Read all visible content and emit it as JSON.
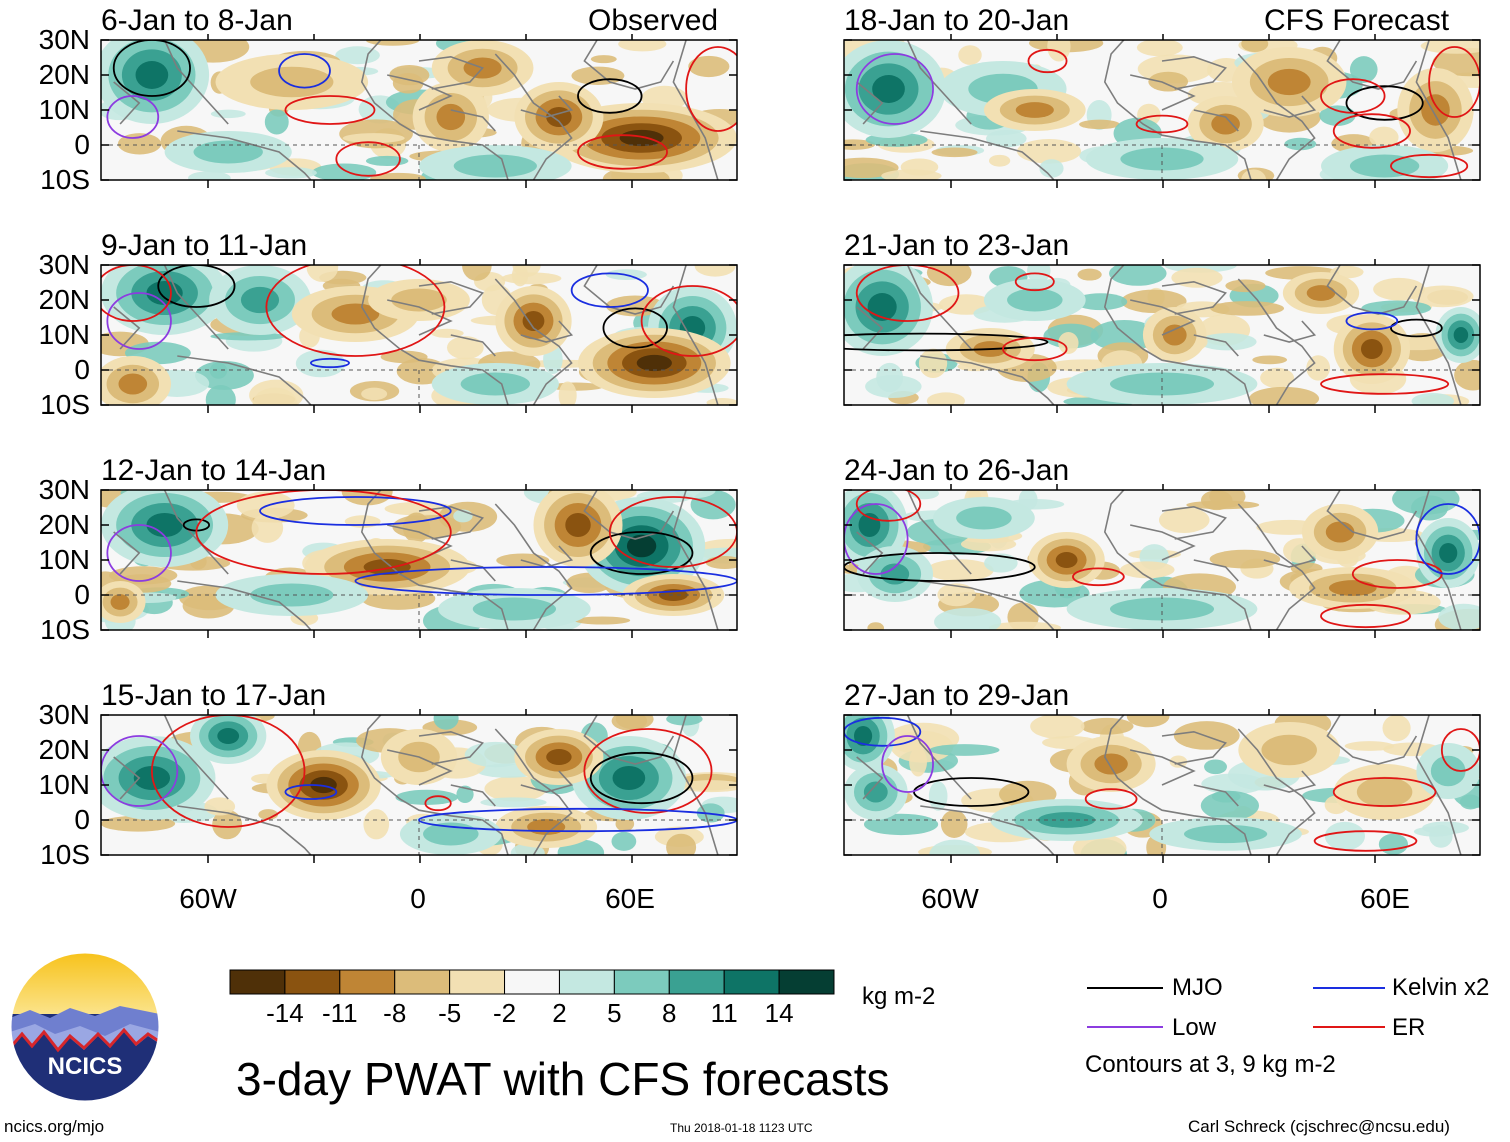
{
  "panels": {
    "observed_label": "Observed",
    "forecast_label": "CFS Forecast",
    "left": [
      {
        "title": "6-Jan to 8-Jan"
      },
      {
        "title": "9-Jan to 11-Jan"
      },
      {
        "title": "12-Jan to 14-Jan"
      },
      {
        "title": "15-Jan to 17-Jan"
      }
    ],
    "right": [
      {
        "title": "18-Jan to 20-Jan"
      },
      {
        "title": "21-Jan to 23-Jan"
      },
      {
        "title": "24-Jan to 26-Jan"
      },
      {
        "title": "27-Jan to 29-Jan"
      }
    ]
  },
  "axes": {
    "lat_labels": [
      "30N",
      "20N",
      "10N",
      "0",
      "10S"
    ],
    "lon_labels": [
      "60W",
      "0",
      "60E"
    ]
  },
  "colorbar": {
    "colors": [
      "#4f3008",
      "#8a5310",
      "#bf8535",
      "#dcbc7a",
      "#f2e0b3",
      "#f7f7f7",
      "#c4e8e1",
      "#7ccbbd",
      "#3aa192",
      "#0e7466",
      "#053e33"
    ],
    "labels": [
      "-14",
      "-11",
      "-8",
      "-5",
      "-2",
      "2",
      "5",
      "8",
      "11",
      "14"
    ],
    "units": "kg m-2"
  },
  "title": "3-day PWAT with CFS forecasts",
  "legend": {
    "items": [
      {
        "label": "MJO",
        "color": "#000000"
      },
      {
        "label": "Kelvin x2",
        "color": "#1a2ee0"
      },
      {
        "label": "Low",
        "color": "#8c3ce0"
      },
      {
        "label": "ER",
        "color": "#e01616"
      }
    ],
    "note": "Contours at 3, 9 kg m-2"
  },
  "logo": {
    "text": "NCICS"
  },
  "footer": {
    "left": "ncics.org/mjo",
    "center": "Thu 2018-01-18 1123 UTC",
    "right": "Carl Schreck (cjschrec@ncsu.edu)"
  }
}
